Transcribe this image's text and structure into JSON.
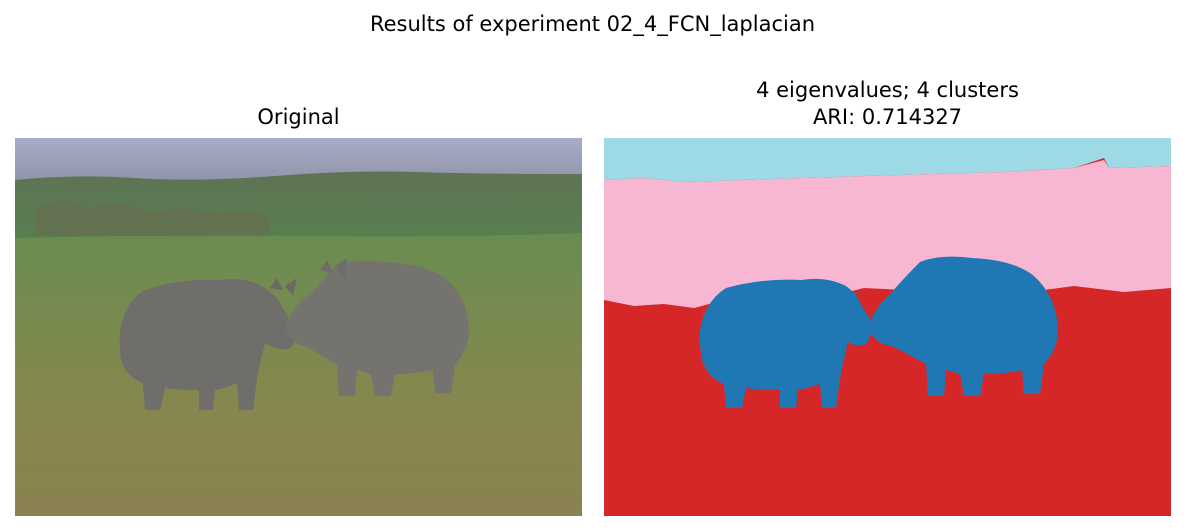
{
  "figure": {
    "suptitle": "Results of experiment 02_4_FCN_laplacian"
  },
  "left_panel": {
    "title": "Original"
  },
  "right_panel": {
    "title_line1": "4 eigenvalues; 4 clusters",
    "title_line2": "ARI: 0.714327"
  },
  "colors": {
    "sky_cluster": "#9edae5",
    "hill_cluster": "#f7b6d2",
    "ground_cluster": "#d62728",
    "rhino_cluster": "#1f77b4"
  }
}
